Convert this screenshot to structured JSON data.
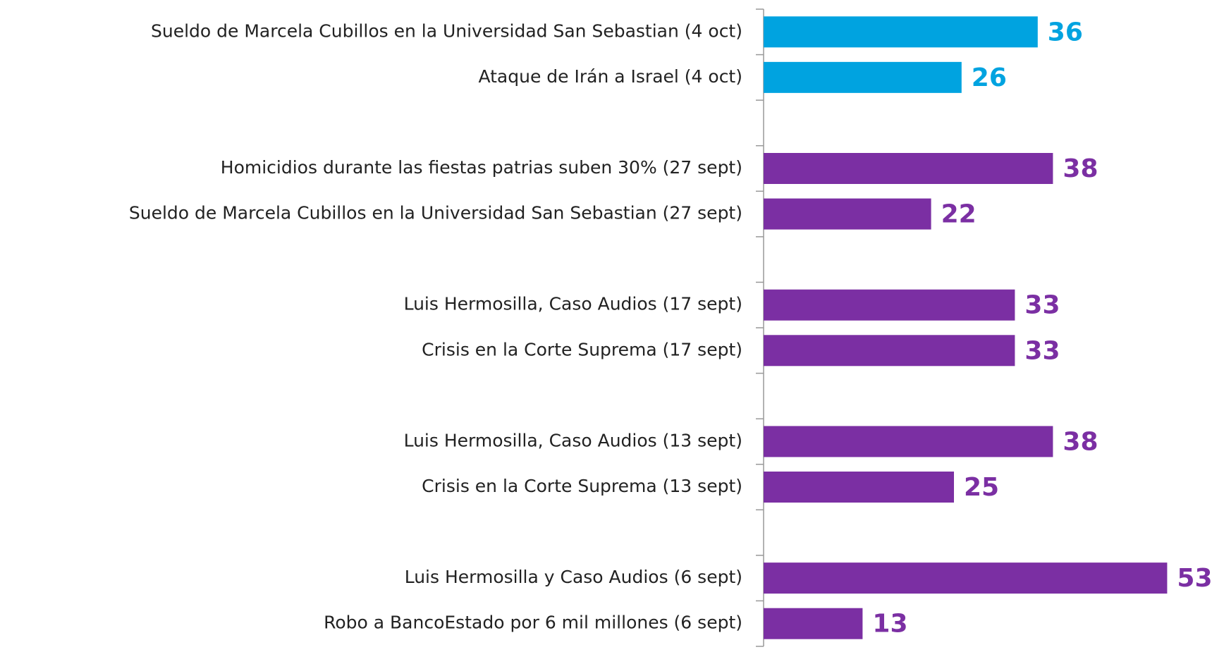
{
  "chart_data": {
    "type": "bar",
    "orientation": "horizontal",
    "categories": [
      "Sueldo de Marcela Cubillos en la Universidad San Sebastian (4 oct)",
      "Ataque de Irán a Israel (4 oct)",
      null,
      "Homicidios durante las fiestas patrias suben 30% (27 sept)",
      "Sueldo de Marcela Cubillos en la Universidad San Sebastian (27 sept)",
      null,
      "Luis Hermosilla, Caso Audios (17 sept)",
      "Crisis en la Corte Suprema  (17 sept)",
      null,
      "Luis Hermosilla, Caso Audios (13 sept)",
      "Crisis en la Corte Suprema  (13 sept)",
      null,
      "Luis Hermosilla y Caso Audios (6 sept)",
      "Robo a BancoEstado por 6 mil millones (6 sept)"
    ],
    "values": [
      36,
      26,
      null,
      38,
      22,
      null,
      33,
      33,
      null,
      38,
      25,
      null,
      53,
      13
    ],
    "colors": [
      "#00a3e0",
      "#00a3e0",
      null,
      "#7b2fa3",
      "#7b2fa3",
      null,
      "#7b2fa3",
      "#7b2fa3",
      null,
      "#7b2fa3",
      "#7b2fa3",
      null,
      "#7b2fa3",
      "#7b2fa3"
    ]
  }
}
